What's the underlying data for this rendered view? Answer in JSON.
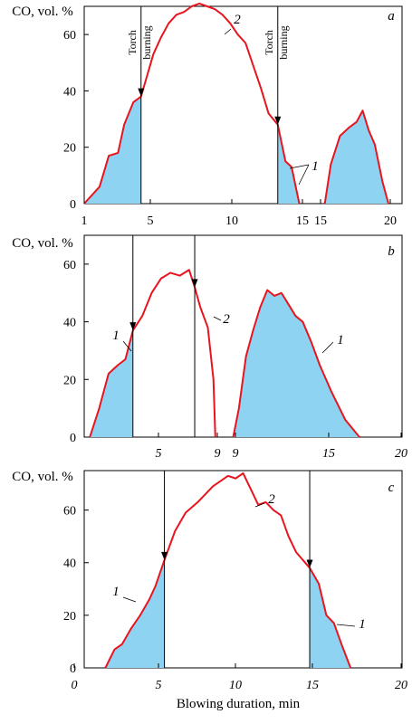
{
  "xlabel": "Blowing duration, min",
  "ylabel": "CO, vol. %",
  "colors": {
    "curve": "#e8141e",
    "fill": "#8fd3f2",
    "axis": "#000000"
  },
  "chart_data": [
    {
      "type": "area",
      "panel": "a",
      "ylim": [
        0,
        70
      ],
      "yticks": [
        "0",
        "20",
        "40",
        "60"
      ],
      "segments": [
        {
          "tick_labels": [
            "1",
            "5",
            "10",
            "15"
          ],
          "xlim": [
            1,
            15.5
          ],
          "x": [
            1,
            2,
            2.6,
            3.2,
            3.6,
            4.2,
            4.7,
            5.5,
            6,
            6.5,
            7,
            7.5,
            8,
            8.5,
            9,
            9.5,
            10,
            10.5,
            11,
            11.5,
            12,
            12.5,
            13,
            13.6,
            14.1,
            14.5,
            15
          ],
          "y": [
            0,
            6,
            17,
            18,
            28,
            36,
            38,
            53,
            59,
            64,
            67,
            68,
            70,
            71,
            70,
            69,
            67,
            64,
            60,
            57,
            49,
            41,
            32,
            28,
            15,
            13,
            0
          ],
          "filled_until": 4.7,
          "filled_from": 13.6
        },
        {
          "tick_labels": [
            "15",
            "20"
          ],
          "xlim": [
            15,
            20.5
          ],
          "x": [
            15.4,
            15.8,
            16.4,
            17,
            17.5,
            17.9,
            18.3,
            18.7,
            19.2,
            19.6
          ],
          "y": [
            0,
            14,
            24,
            27,
            29,
            33,
            26,
            21,
            8,
            0
          ],
          "filled_until": 19.6
        }
      ],
      "arrows_at": [
        4.7,
        13.6
      ],
      "arrow_labels": [
        "Torch",
        "burning"
      ],
      "curve_labels": [
        "1",
        "2"
      ]
    },
    {
      "type": "area",
      "panel": "b",
      "ylim": [
        0,
        70
      ],
      "yticks": [
        "0",
        "20",
        "40",
        "60"
      ],
      "segments": [
        {
          "tick_labels": [
            "5",
            "9"
          ],
          "xlim": [
            2,
            9.3
          ],
          "x": [
            2.3,
            2.8,
            3.3,
            3.8,
            4.2,
            4.6,
            5.1,
            5.6,
            6.1,
            6.6,
            7.1,
            7.6,
            7.9,
            8.2,
            8.6,
            8.9,
            9.0
          ],
          "y": [
            0,
            10,
            22,
            25,
            27,
            37,
            42,
            50,
            55,
            57,
            56,
            58,
            52,
            45,
            38,
            20,
            0
          ],
          "filled_until": 4.6
        },
        {
          "tick_labels": [
            "9",
            "15",
            "20"
          ],
          "xlim": [
            9,
            21
          ],
          "x": [
            9.1,
            9.5,
            10,
            10.5,
            11,
            11.5,
            12,
            12.5,
            13,
            13.5,
            14,
            14.6,
            15.2,
            16,
            17,
            18
          ],
          "y": [
            0,
            10,
            28,
            37,
            45,
            51,
            49,
            50,
            46,
            42,
            40,
            33,
            25,
            16,
            6,
            0
          ],
          "filled_until": 18
        }
      ],
      "arrows_at": [
        4.6,
        7.9
      ],
      "curve_labels": [
        "1",
        "2",
        "1"
      ]
    },
    {
      "type": "area",
      "panel": "c",
      "ylim": [
        0,
        75
      ],
      "yticks": [
        "0",
        "20",
        "40",
        "60"
      ],
      "segments": [
        {
          "tick_labels": [
            "0",
            "5",
            "10",
            "15",
            "20"
          ],
          "xlim": [
            -0.5,
            20.5
          ],
          "x": [
            0.9,
            1.5,
            2,
            2.6,
            3.2,
            3.8,
            4.2,
            4.8,
            5.5,
            6.2,
            7,
            8,
            9,
            9.5,
            10,
            10.5,
            11,
            11.5,
            12,
            12.5,
            13,
            13.5,
            14.4,
            15,
            15.5,
            16,
            16.5,
            17.1
          ],
          "y": [
            0,
            7,
            9,
            15,
            20,
            26,
            31,
            41,
            52,
            59,
            63,
            69,
            73,
            72,
            74,
            68,
            62,
            63,
            60,
            58,
            50,
            44,
            38,
            32,
            20,
            17,
            9,
            0
          ],
          "filled_until": 4.8,
          "filled_from": 14.4
        }
      ],
      "arrows_at": [
        4.8,
        14.4
      ],
      "curve_labels": [
        "1",
        "2",
        "1"
      ]
    }
  ]
}
